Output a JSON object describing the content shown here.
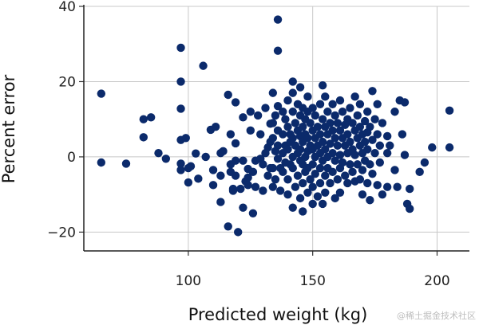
{
  "chart_data": {
    "type": "scatter",
    "xlabel": "Predicted weight (kg)",
    "ylabel": "Percent error",
    "xlim": [
      58,
      213
    ],
    "ylim": [
      -25,
      40
    ],
    "xticks": [
      100,
      150,
      200
    ],
    "yticks": [
      -20,
      0,
      20,
      40
    ],
    "xtick_labels": [
      "100",
      "150",
      "200"
    ],
    "ytick_labels": [
      "−20",
      "0",
      "20",
      "40"
    ],
    "grid": true,
    "marker_color": "#0b2a6b",
    "grid_color": "#c8c8c8",
    "points": [
      [
        65,
        16.8
      ],
      [
        65,
        -1.5
      ],
      [
        75,
        -1.8
      ],
      [
        82,
        10
      ],
      [
        82,
        5.2
      ],
      [
        85,
        10.5
      ],
      [
        88,
        1
      ],
      [
        91,
        -0.5
      ],
      [
        97,
        29
      ],
      [
        97,
        20
      ],
      [
        97,
        12.8
      ],
      [
        97,
        4.5
      ],
      [
        97,
        -1.8
      ],
      [
        97,
        -3.5
      ],
      [
        99,
        5
      ],
      [
        100,
        -6.8
      ],
      [
        100,
        -3
      ],
      [
        101,
        -2.5
      ],
      [
        103,
        0.9
      ],
      [
        104,
        -5.8
      ],
      [
        106,
        24.2
      ],
      [
        107,
        0
      ],
      [
        109,
        7.2
      ],
      [
        110,
        -7.5
      ],
      [
        110,
        -3.5
      ],
      [
        111,
        8
      ],
      [
        113,
        -5
      ],
      [
        113,
        1
      ],
      [
        113,
        -12
      ],
      [
        114,
        1.5
      ],
      [
        116,
        16.5
      ],
      [
        116,
        -18.5
      ],
      [
        117,
        6
      ],
      [
        117,
        -2
      ],
      [
        117,
        -4
      ],
      [
        118,
        -8.5
      ],
      [
        118,
        -9
      ],
      [
        119,
        14.5
      ],
      [
        119,
        3.6
      ],
      [
        119,
        -1
      ],
      [
        119,
        -5
      ],
      [
        120,
        -20
      ],
      [
        121,
        -8.5
      ],
      [
        122,
        -13.5
      ],
      [
        122,
        -1
      ],
      [
        122,
        10.5
      ],
      [
        123,
        -6.5
      ],
      [
        124,
        -3.2
      ],
      [
        124,
        -5.5
      ],
      [
        124,
        -7.5
      ],
      [
        125,
        12
      ],
      [
        125,
        7
      ],
      [
        126,
        -4
      ],
      [
        126,
        -15
      ],
      [
        127,
        -8
      ],
      [
        127,
        -1
      ],
      [
        128,
        11
      ],
      [
        129,
        6
      ],
      [
        129,
        -0.5
      ],
      [
        130,
        -2
      ],
      [
        130,
        -9
      ],
      [
        131,
        13
      ],
      [
        131,
        1
      ],
      [
        132,
        2.5
      ],
      [
        132,
        -5
      ],
      [
        133,
        8.8
      ],
      [
        133,
        4
      ],
      [
        133,
        -3
      ],
      [
        134,
        17
      ],
      [
        134,
        9
      ],
      [
        134,
        5
      ],
      [
        134,
        -3
      ],
      [
        134,
        -8
      ],
      [
        135,
        11
      ],
      [
        135,
        1.5
      ],
      [
        135,
        -6
      ],
      [
        136,
        36.5
      ],
      [
        136,
        28.2
      ],
      [
        136,
        13.5
      ],
      [
        136,
        7
      ],
      [
        136,
        3
      ],
      [
        136,
        -0.5
      ],
      [
        137,
        -3
      ],
      [
        137,
        -9
      ],
      [
        138,
        12
      ],
      [
        138,
        6
      ],
      [
        138,
        1
      ],
      [
        138,
        -4
      ],
      [
        139,
        10
      ],
      [
        139,
        3
      ],
      [
        139,
        -1.5
      ],
      [
        140,
        15
      ],
      [
        140,
        8
      ],
      [
        140,
        2
      ],
      [
        140,
        -6
      ],
      [
        140,
        -10
      ],
      [
        141,
        6
      ],
      [
        141,
        4
      ],
      [
        141,
        -2
      ],
      [
        142,
        20
      ],
      [
        142,
        17
      ],
      [
        142,
        12
      ],
      [
        142,
        5
      ],
      [
        142,
        0
      ],
      [
        142,
        -3
      ],
      [
        142,
        -13.5
      ],
      [
        143,
        9
      ],
      [
        143,
        3
      ],
      [
        143,
        -8
      ],
      [
        144,
        14
      ],
      [
        144,
        7
      ],
      [
        144,
        1
      ],
      [
        144,
        -5
      ],
      [
        145,
        18.5
      ],
      [
        145,
        11
      ],
      [
        145,
        5.5
      ],
      [
        145,
        2
      ],
      [
        145,
        -1
      ],
      [
        145,
        -11
      ],
      [
        146,
        13
      ],
      [
        146,
        8
      ],
      [
        146,
        4
      ],
      [
        146,
        -2
      ],
      [
        146,
        -7
      ],
      [
        146,
        -14.5
      ],
      [
        147,
        10
      ],
      [
        147,
        6
      ],
      [
        147,
        0
      ],
      [
        147,
        -4
      ],
      [
        148,
        16
      ],
      [
        148,
        12
      ],
      [
        148,
        5
      ],
      [
        148,
        1.5
      ],
      [
        148,
        -3
      ],
      [
        148,
        -9.5
      ],
      [
        149,
        9
      ],
      [
        149,
        3
      ],
      [
        149,
        -6
      ],
      [
        150,
        13
      ],
      [
        150,
        7
      ],
      [
        150,
        2
      ],
      [
        150,
        -2
      ],
      [
        150,
        -8
      ],
      [
        150,
        -12.5
      ],
      [
        151,
        11
      ],
      [
        151,
        5
      ],
      [
        151,
        0
      ],
      [
        151,
        -4.5
      ],
      [
        152,
        8
      ],
      [
        152,
        3
      ],
      [
        152,
        -10.5
      ],
      [
        153,
        14
      ],
      [
        153,
        6
      ],
      [
        153,
        1
      ],
      [
        153,
        -3
      ],
      [
        153,
        -7
      ],
      [
        154,
        19
      ],
      [
        154,
        10
      ],
      [
        154,
        4
      ],
      [
        154,
        -1
      ],
      [
        154,
        -12.5
      ],
      [
        155,
        16
      ],
      [
        155,
        8
      ],
      [
        155,
        2
      ],
      [
        155,
        -5
      ],
      [
        155,
        -9.5
      ],
      [
        156,
        12
      ],
      [
        156,
        6
      ],
      [
        156,
        0
      ],
      [
        156,
        -3
      ],
      [
        157,
        9
      ],
      [
        157,
        3.5
      ],
      [
        157,
        -7
      ],
      [
        158,
        14
      ],
      [
        158,
        7
      ],
      [
        158,
        1
      ],
      [
        158,
        -4
      ],
      [
        159,
        11
      ],
      [
        159,
        5
      ],
      [
        159,
        -1
      ],
      [
        159,
        -11
      ],
      [
        160,
        9
      ],
      [
        160,
        3
      ],
      [
        160,
        -6
      ],
      [
        161,
        15
      ],
      [
        161,
        7
      ],
      [
        161,
        0.5
      ],
      [
        161,
        -3
      ],
      [
        161,
        -9.5
      ],
      [
        162,
        12
      ],
      [
        162,
        5
      ],
      [
        162,
        -1.5
      ],
      [
        163,
        8.5
      ],
      [
        163,
        3
      ],
      [
        163,
        -5
      ],
      [
        164,
        10
      ],
      [
        164,
        6
      ],
      [
        164,
        1
      ],
      [
        164,
        -7
      ],
      [
        165,
        13
      ],
      [
        165,
        4
      ],
      [
        165,
        -2
      ],
      [
        166,
        9
      ],
      [
        166,
        2
      ],
      [
        166,
        -4
      ],
      [
        167,
        16
      ],
      [
        167,
        7
      ],
      [
        167,
        0.5
      ],
      [
        167,
        -6.5
      ],
      [
        168,
        11
      ],
      [
        168,
        5
      ],
      [
        168,
        -2
      ],
      [
        169,
        14
      ],
      [
        169,
        8
      ],
      [
        169,
        3
      ],
      [
        169,
        -6
      ],
      [
        170,
        6
      ],
      [
        170,
        1
      ],
      [
        170,
        -3.5
      ],
      [
        170,
        -10
      ],
      [
        171,
        9.5
      ],
      [
        171,
        4
      ],
      [
        171,
        -1
      ],
      [
        172,
        12
      ],
      [
        172,
        6.5
      ],
      [
        172,
        2
      ],
      [
        172,
        -7
      ],
      [
        173,
        8
      ],
      [
        173,
        -2
      ],
      [
        173,
        -11.5
      ],
      [
        174,
        17.5
      ],
      [
        174,
        4.5
      ],
      [
        174,
        -4.5
      ],
      [
        175,
        10
      ],
      [
        175,
        1
      ],
      [
        176,
        14
      ],
      [
        176,
        6
      ],
      [
        176,
        -7.5
      ],
      [
        177,
        3
      ],
      [
        177,
        -1.5
      ],
      [
        178,
        9
      ],
      [
        178,
        -10
      ],
      [
        180,
        5.5
      ],
      [
        180,
        1
      ],
      [
        180,
        -8
      ],
      [
        181,
        3
      ],
      [
        183,
        12
      ],
      [
        183,
        -3.5
      ],
      [
        184,
        -8
      ],
      [
        185,
        15
      ],
      [
        186,
        6
      ],
      [
        187,
        14.5
      ],
      [
        187,
        0.5
      ],
      [
        188,
        -12.5
      ],
      [
        189,
        -13.8
      ],
      [
        189,
        -8.5
      ],
      [
        193,
        -4
      ],
      [
        195,
        -1.5
      ],
      [
        198,
        2.5
      ],
      [
        205,
        12.3
      ],
      [
        205,
        2.5
      ]
    ]
  },
  "watermark": "@稀土掘金技术社区"
}
